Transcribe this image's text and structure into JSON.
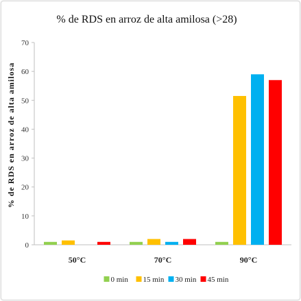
{
  "chart_data": {
    "type": "bar",
    "title": "% de RDS en arroz de alta amilosa (>28)",
    "xlabel": "",
    "ylabel": "% de RDS en arroz de alta amilosa",
    "ylim": [
      0,
      70
    ],
    "yticks": [
      0,
      10,
      20,
      30,
      40,
      50,
      60,
      70
    ],
    "categories": [
      "50°C",
      "70°C",
      "90°C"
    ],
    "grid": false,
    "legend_position": "bottom",
    "series": [
      {
        "name": "0 min",
        "color": "#92D050",
        "values": [
          1,
          1,
          1
        ]
      },
      {
        "name": "15 min",
        "color": "#FFC000",
        "values": [
          1.5,
          2,
          51.5
        ]
      },
      {
        "name": "30 min",
        "color": "#00B0F0",
        "values": [
          0,
          1,
          59
        ]
      },
      {
        "name": "45 min",
        "color": "#FF0000",
        "values": [
          1,
          2,
          57
        ]
      }
    ]
  }
}
